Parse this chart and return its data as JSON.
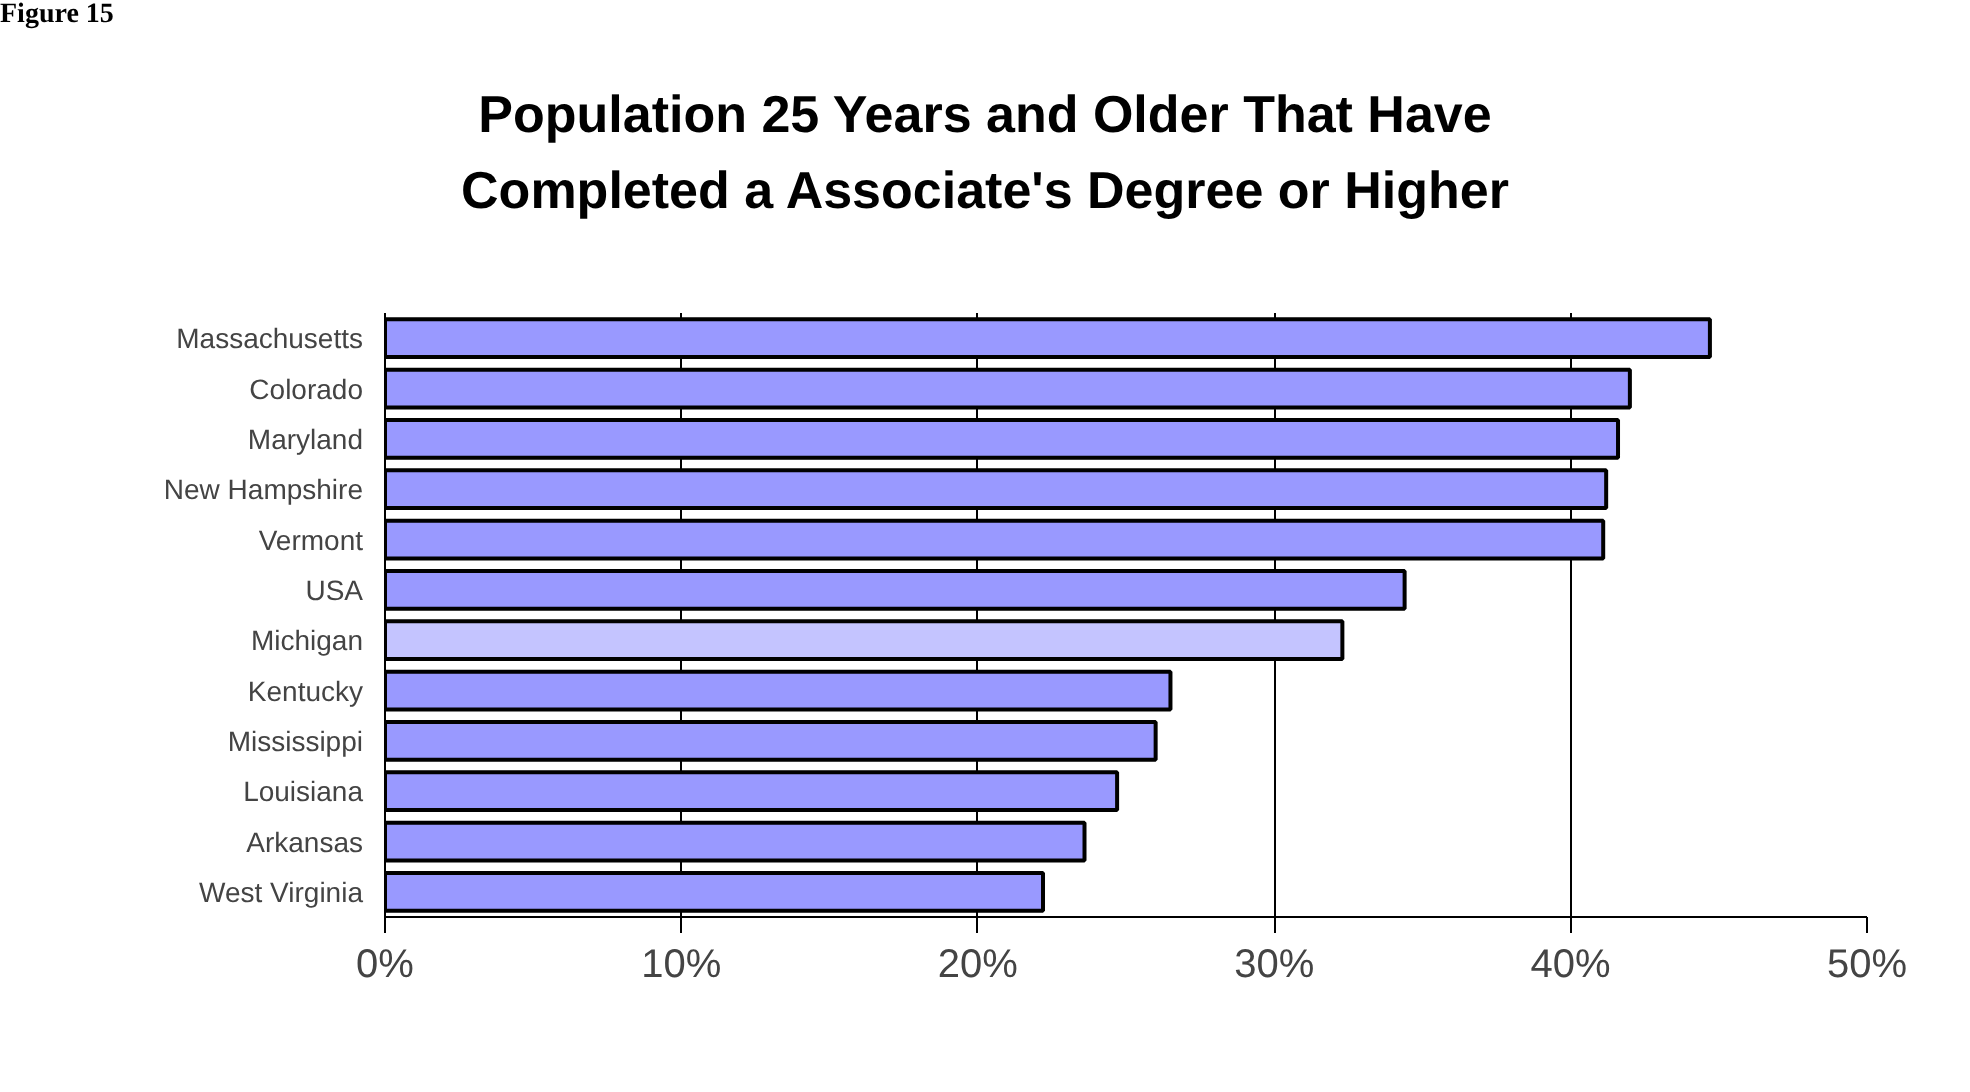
{
  "chart_data": {
    "type": "bar",
    "orientation": "horizontal",
    "title": "Population 25 Years and Older That Have\nCompleted a Associate's Degree or Higher",
    "annotations": [
      "Figure 15"
    ],
    "categories": [
      "Massachusetts",
      "Colorado",
      "Maryland",
      "New Hampshire",
      "Vermont",
      "USA",
      "Michigan",
      "Kentucky",
      "Mississippi",
      "Louisiana",
      "Arkansas",
      "West Virginia"
    ],
    "values": [
      44.7,
      42.0,
      41.6,
      41.2,
      41.1,
      34.4,
      32.3,
      26.5,
      26.0,
      24.7,
      23.6,
      22.2
    ],
    "colors": [
      "#9999ff",
      "#9999ff",
      "#9999ff",
      "#9999ff",
      "#9999ff",
      "#9999ff",
      "#c4c4ff",
      "#9999ff",
      "#9999ff",
      "#9999ff",
      "#9999ff",
      "#9999ff"
    ],
    "xlim": [
      0,
      50
    ],
    "xticks": [
      {
        "value": 0,
        "label": "0%"
      },
      {
        "value": 10,
        "label": "10%"
      },
      {
        "value": 20,
        "label": "20%"
      },
      {
        "value": 30,
        "label": "30%"
      },
      {
        "value": 40,
        "label": "40%"
      },
      {
        "value": 50,
        "label": "50%"
      }
    ],
    "grid": "x"
  }
}
